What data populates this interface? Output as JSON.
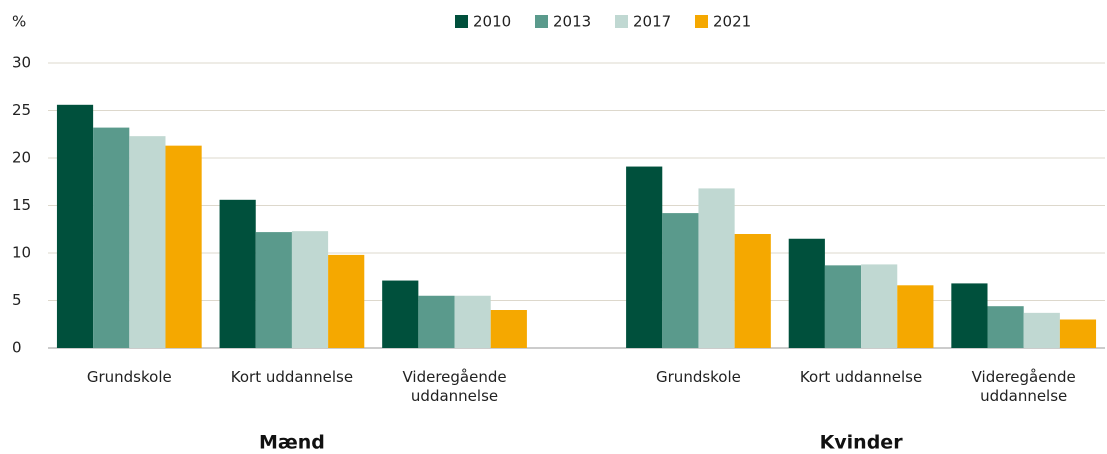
{
  "chart_data": {
    "type": "bar",
    "y_label": "%",
    "categories": [
      "Grundskole",
      "Kort uddannelse",
      "Videregående uddannelse",
      "Grundskole",
      "Kort uddannelse",
      "Videregående uddannelse"
    ],
    "group_labels": [
      "Mænd",
      "Kvinder"
    ],
    "series": [
      {
        "name": "2010",
        "color": "#00503c",
        "values": [
          25.6,
          15.6,
          7.1,
          19.1,
          11.5,
          6.8
        ]
      },
      {
        "name": "2013",
        "color": "#5a9a8c",
        "values": [
          23.2,
          12.2,
          5.5,
          14.2,
          8.7,
          4.4
        ]
      },
      {
        "name": "2017",
        "color": "#c0d8d2",
        "values": [
          22.3,
          12.3,
          5.5,
          16.8,
          8.8,
          3.7
        ]
      },
      {
        "name": "2021",
        "color": "#f5a800",
        "values": [
          21.3,
          9.8,
          4.0,
          12.0,
          6.6,
          3.0
        ]
      }
    ],
    "ylim": [
      0,
      30
    ],
    "yticks": [
      0,
      5,
      10,
      15,
      20,
      25,
      30
    ],
    "grid": true,
    "legend": "top"
  }
}
